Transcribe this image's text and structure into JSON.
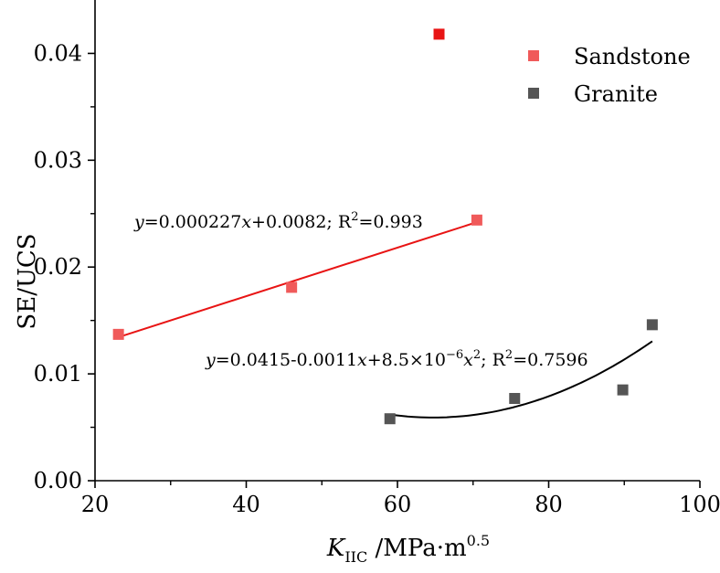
{
  "chart_data": {
    "type": "scatter",
    "title": "",
    "xlabel": {
      "main": "K",
      "sub": "IIC",
      "rest": " /MPa·m",
      "sup": "0.5"
    },
    "ylabel": "SE/UCS",
    "xlim": [
      20,
      100
    ],
    "ylim": [
      0,
      0.045
    ],
    "x_ticks": [
      20,
      40,
      60,
      80,
      100
    ],
    "x_tick_labels": [
      "20",
      "40",
      "60",
      "80",
      "100"
    ],
    "y_ticks": [
      0,
      0.01,
      0.02,
      0.03,
      0.04
    ],
    "y_tick_labels": [
      "0.00",
      "0.01",
      "0.02",
      "0.03",
      "0.04"
    ],
    "grid": false,
    "legend_position": "top-right",
    "series": [
      {
        "name": "Sandstone",
        "color": "#f05a5a",
        "points": [
          {
            "x": 23.1,
            "y": 0.0137
          },
          {
            "x": 46.0,
            "y": 0.0181
          },
          {
            "x": 70.5,
            "y": 0.0244
          },
          {
            "x": 65.5,
            "y": 0.0418,
            "color": "#e81414"
          }
        ]
      },
      {
        "name": "Granite",
        "color": "#555555",
        "points": [
          {
            "x": 59.0,
            "y": 0.0058
          },
          {
            "x": 75.5,
            "y": 0.0077
          },
          {
            "x": 89.8,
            "y": 0.0085
          },
          {
            "x": 93.7,
            "y": 0.0146
          }
        ]
      }
    ],
    "fits": [
      {
        "series": "Sandstone",
        "kind": "linear",
        "color": "#e81414",
        "coefficients": {
          "a": 0.000227,
          "b": 0.0082
        },
        "x_range": [
          23.1,
          70.5
        ],
        "equation": {
          "y": "y",
          "body": "=0.000227",
          "x": "x",
          "tail": "+0.0082; R",
          "sup": "2",
          "end": "=0.993"
        }
      },
      {
        "series": "Granite",
        "kind": "quadratic",
        "color": "#000000",
        "coefficients": {
          "c0": 0.0415,
          "c1": -0.0011,
          "c2": 8.5e-06
        },
        "x_range": [
          59.0,
          93.7
        ],
        "equation": {
          "y": "y",
          "body": "=0.0415-0.0011",
          "x1": "x",
          "mid": "+8.5×10",
          "exp": "−6",
          "x2": "x",
          "sup": "2",
          "end": "; R",
          "r_sup": "2",
          "r_val": "=0.7596"
        }
      }
    ]
  }
}
